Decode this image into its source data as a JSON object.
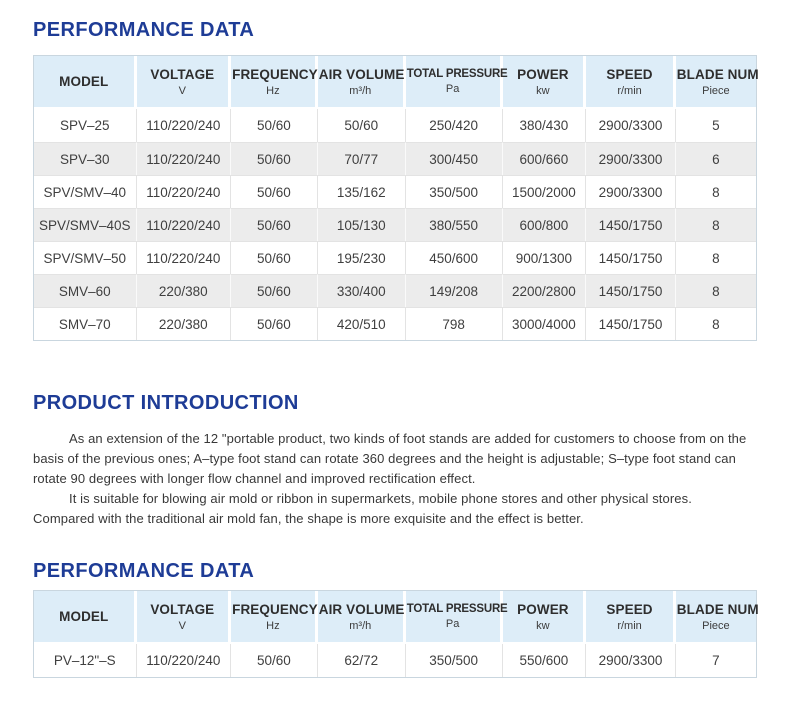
{
  "colors": {
    "heading_accent": "#1e3c96",
    "table_header_bg": "#ddedf8",
    "row_alt_bg": "#ececec",
    "table_border": "#c9d6df"
  },
  "sections": {
    "performance_1": {
      "heading": "PERFORMANCE DATA",
      "table": {
        "columns": [
          {
            "label": "MODEL",
            "unit": ""
          },
          {
            "label": "VOLTAGE",
            "unit": "V"
          },
          {
            "label": "FREQUENCY",
            "unit": "Hz"
          },
          {
            "label": "AIR VOLUME",
            "unit": "m³/h"
          },
          {
            "label": "TOTAL PRESSURE",
            "unit": "Pa"
          },
          {
            "label": "POWER",
            "unit": "kw"
          },
          {
            "label": "SPEED",
            "unit": "r/min"
          },
          {
            "label": "BLADE NUM",
            "unit": "Piece"
          }
        ],
        "rows": [
          [
            "SPV–25",
            "110/220/240",
            "50/60",
            "50/60",
            "250/420",
            "380/430",
            "2900/3300",
            "5"
          ],
          [
            "SPV–30",
            "110/220/240",
            "50/60",
            "70/77",
            "300/450",
            "600/660",
            "2900/3300",
            "6"
          ],
          [
            "SPV/SMV–40",
            "110/220/240",
            "50/60",
            "135/162",
            "350/500",
            "1500/2000",
            "2900/3300",
            "8"
          ],
          [
            "SPV/SMV–40S",
            "110/220/240",
            "50/60",
            "105/130",
            "380/550",
            "600/800",
            "1450/1750",
            "8"
          ],
          [
            "SPV/SMV–50",
            "110/220/240",
            "50/60",
            "195/230",
            "450/600",
            "900/1300",
            "1450/1750",
            "8"
          ],
          [
            "SMV–60",
            "220/380",
            "50/60",
            "330/400",
            "149/208",
            "2200/2800",
            "1450/1750",
            "8"
          ],
          [
            "SMV–70",
            "220/380",
            "50/60",
            "420/510",
            "798",
            "3000/4000",
            "1450/1750",
            "8"
          ]
        ]
      }
    },
    "introduction": {
      "heading": "PRODUCT INTRODUCTION",
      "paragraphs": [
        "As an extension of the 12 \"portable product, two kinds of foot stands are added for customers to choose from on the basis of the previous ones; A–type foot stand can rotate 360 degrees and the height is adjustable; S–type foot stand can rotate 90 degrees with longer flow channel and improved rectification effect.",
        "It is suitable for blowing air mold or ribbon in supermarkets, mobile phone stores and other physical stores. Compared with the traditional air mold fan, the shape is more exquisite and the effect is better."
      ]
    },
    "performance_2": {
      "heading": "PERFORMANCE DATA",
      "table": {
        "columns": [
          {
            "label": "MODEL",
            "unit": ""
          },
          {
            "label": "VOLTAGE",
            "unit": "V"
          },
          {
            "label": "FREQUENCY",
            "unit": "Hz"
          },
          {
            "label": "AIR VOLUME",
            "unit": "m³/h"
          },
          {
            "label": "TOTAL PRESSURE",
            "unit": "Pa"
          },
          {
            "label": "POWER",
            "unit": "kw"
          },
          {
            "label": "SPEED",
            "unit": "r/min"
          },
          {
            "label": "BLADE NUM",
            "unit": "Piece"
          }
        ],
        "rows": [
          [
            "PV–12\"–S",
            "110/220/240",
            "50/60",
            "62/72",
            "350/500",
            "550/600",
            "2900/3300",
            "7"
          ]
        ]
      }
    }
  }
}
